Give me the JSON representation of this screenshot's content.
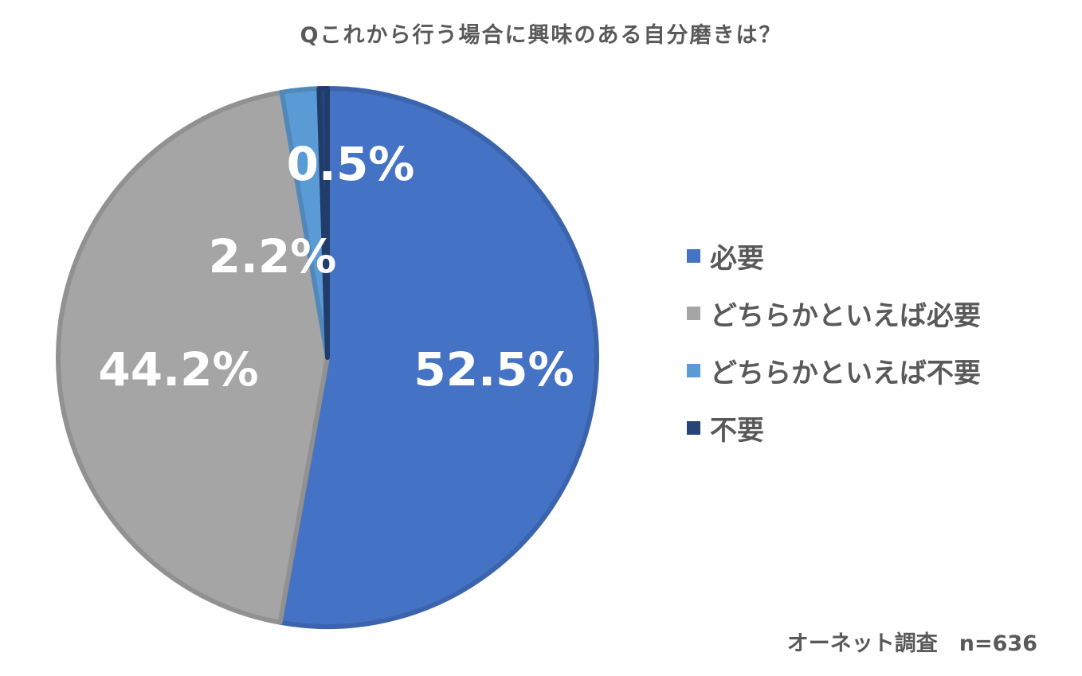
{
  "chart_data": {
    "type": "pie",
    "title": "Qこれから行う場合に興味のある自分磨きは？",
    "categories": [
      "必要",
      "どちらかといえば必要",
      "どちらかといえば不要",
      "不要"
    ],
    "values": [
      52.5,
      44.2,
      2.2,
      0.5
    ],
    "value_labels": [
      "52.5%",
      "44.2%",
      "2.2%",
      "0.5%"
    ],
    "colors": [
      "#4472C4",
      "#A5A5A5",
      "#5B9BD5",
      "#264478"
    ],
    "legend_position": "right"
  },
  "source_note": "オーネット調査　n=636"
}
